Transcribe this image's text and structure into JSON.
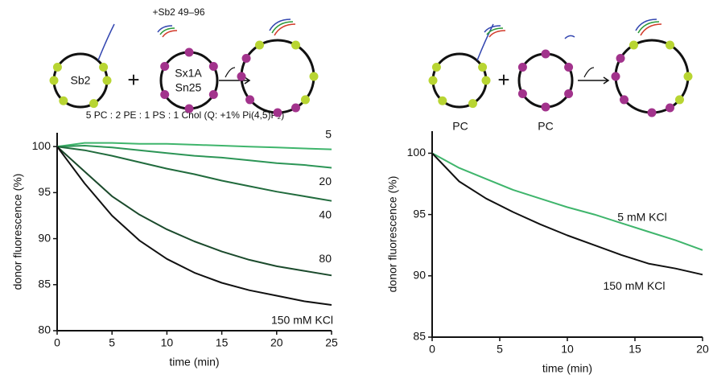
{
  "diagrams": {
    "left": {
      "addition": "+Sb2 49–96",
      "vesicle_1": "Sb2",
      "plus": "+",
      "vesicle_2_line_1": "Sx1A",
      "vesicle_2_line_2": "Sn25"
    },
    "right": {
      "vesicle_1": "PC",
      "plus": "+",
      "vesicle_2": "PC"
    },
    "composition": "5 PC : 2 PE : 1 PS : 1 Chol (Q: +1% Pi(4,5)P₂)"
  },
  "chart_data": [
    {
      "type": "line",
      "xlabel": "time (min)",
      "ylabel": "donor fluorescence (%)",
      "x": [
        0,
        2.5,
        5,
        7.5,
        10,
        12.5,
        15,
        17.5,
        20,
        22.5,
        25
      ],
      "series": [
        {
          "name": "5",
          "color": "#3fb56c",
          "values": [
            100,
            100.4,
            100.4,
            100.3,
            100.3,
            100.2,
            100.1,
            100.0,
            99.9,
            99.8,
            99.7
          ]
        },
        {
          "name": "20",
          "color": "#2c9556",
          "values": [
            100,
            100.1,
            99.9,
            99.6,
            99.3,
            99.0,
            98.8,
            98.5,
            98.2,
            98.0,
            97.7
          ]
        },
        {
          "name": "40",
          "color": "#216b3d",
          "values": [
            100,
            99.6,
            99.0,
            98.3,
            97.6,
            97.0,
            96.3,
            95.7,
            95.1,
            94.6,
            94.1
          ]
        },
        {
          "name": "80",
          "color": "#1b4a2c",
          "values": [
            100,
            97.3,
            94.6,
            92.6,
            91.0,
            89.7,
            88.6,
            87.7,
            87.0,
            86.5,
            86.0
          ]
        },
        {
          "name": "150 mM KCl",
          "color": "#111111",
          "values": [
            100,
            96.0,
            92.5,
            89.8,
            87.8,
            86.3,
            85.2,
            84.4,
            83.8,
            83.2,
            82.8
          ]
        }
      ],
      "xlim": [
        0,
        25
      ],
      "ylim": [
        80,
        101.5
      ],
      "xticks": [
        0,
        5,
        10,
        15,
        20,
        25
      ],
      "yticks": [
        80,
        85,
        90,
        95,
        100
      ]
    },
    {
      "type": "line",
      "xlabel": "time (min)",
      "ylabel": "donor fluorescence (%)",
      "x": [
        0,
        2,
        4,
        6,
        8,
        10,
        12,
        14,
        16,
        18,
        20
      ],
      "series": [
        {
          "name": "5 mM KCl",
          "color": "#3fb56c",
          "values": [
            100,
            98.8,
            97.9,
            97.0,
            96.3,
            95.6,
            95.0,
            94.3,
            93.6,
            92.9,
            92.1
          ]
        },
        {
          "name": "150 mM KCl",
          "color": "#111111",
          "values": [
            100,
            97.7,
            96.3,
            95.2,
            94.2,
            93.3,
            92.5,
            91.7,
            91.0,
            90.6,
            90.1
          ]
        }
      ],
      "xlim": [
        0,
        20
      ],
      "ylim": [
        85,
        101.8
      ],
      "xticks": [
        0,
        5,
        10,
        15,
        20
      ],
      "yticks": [
        85,
        90,
        95,
        100
      ]
    }
  ]
}
